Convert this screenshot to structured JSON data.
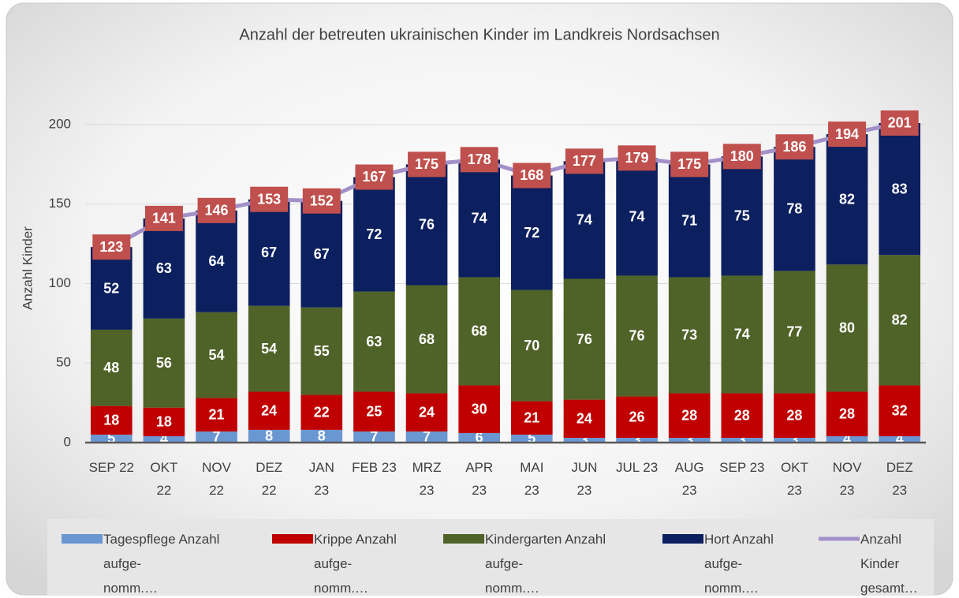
{
  "chart_data": {
    "type": "stacked_bar_line",
    "title": "Anzahl der betreuten ukrainischen Kinder im Landkreis Nordsachsen",
    "y_label": "Anzahl Kinder",
    "categories": [
      "SEP 22",
      "OKT\n22",
      "NOV\n22",
      "DEZ\n22",
      "JAN\n23",
      "FEB 23",
      "MRZ\n23",
      "APR\n23",
      "MAI\n23",
      "JUN\n23",
      "JUL 23",
      "AUG\n23",
      "SEP 23",
      "OKT\n23",
      "NOV\n23",
      "DEZ\n23"
    ],
    "series": [
      {
        "name": "Tagespflege Anzahl\naufge-\nnomm.…",
        "type": "bar",
        "color": "#6a97d2",
        "values": [
          5,
          4,
          7,
          8,
          8,
          7,
          7,
          6,
          5,
          3,
          3,
          3,
          3,
          3,
          4,
          4
        ]
      },
      {
        "name": "Krippe Anzahl\naufge-\nnomm.…",
        "type": "bar",
        "color": "#c00000",
        "values": [
          18,
          18,
          21,
          24,
          22,
          25,
          24,
          30,
          21,
          24,
          26,
          28,
          28,
          28,
          28,
          32
        ]
      },
      {
        "name": "Kindergarten Anzahl\naufge-\nnomm.…",
        "type": "bar",
        "color": "#4f6228",
        "values": [
          48,
          56,
          54,
          54,
          55,
          63,
          68,
          68,
          70,
          76,
          76,
          73,
          74,
          77,
          80,
          82
        ]
      },
      {
        "name": "Hort Anzahl\naufge-\nnomm.…",
        "type": "bar",
        "color": "#0c1f5f",
        "values": [
          52,
          63,
          64,
          67,
          67,
          72,
          76,
          74,
          72,
          74,
          74,
          71,
          75,
          78,
          82,
          83
        ]
      },
      {
        "name": "Anzahl\nKinder\ngesamt…",
        "type": "line",
        "color": "#a290c8",
        "label_color": "#c0504d",
        "values": [
          123,
          141,
          146,
          153,
          152,
          167,
          175,
          178,
          168,
          177,
          179,
          175,
          180,
          186,
          194,
          201
        ]
      }
    ],
    "ylim": [
      0,
      220
    ],
    "yticks": [
      0,
      50,
      100,
      150,
      200
    ],
    "grid": true,
    "legend": "bottom"
  }
}
